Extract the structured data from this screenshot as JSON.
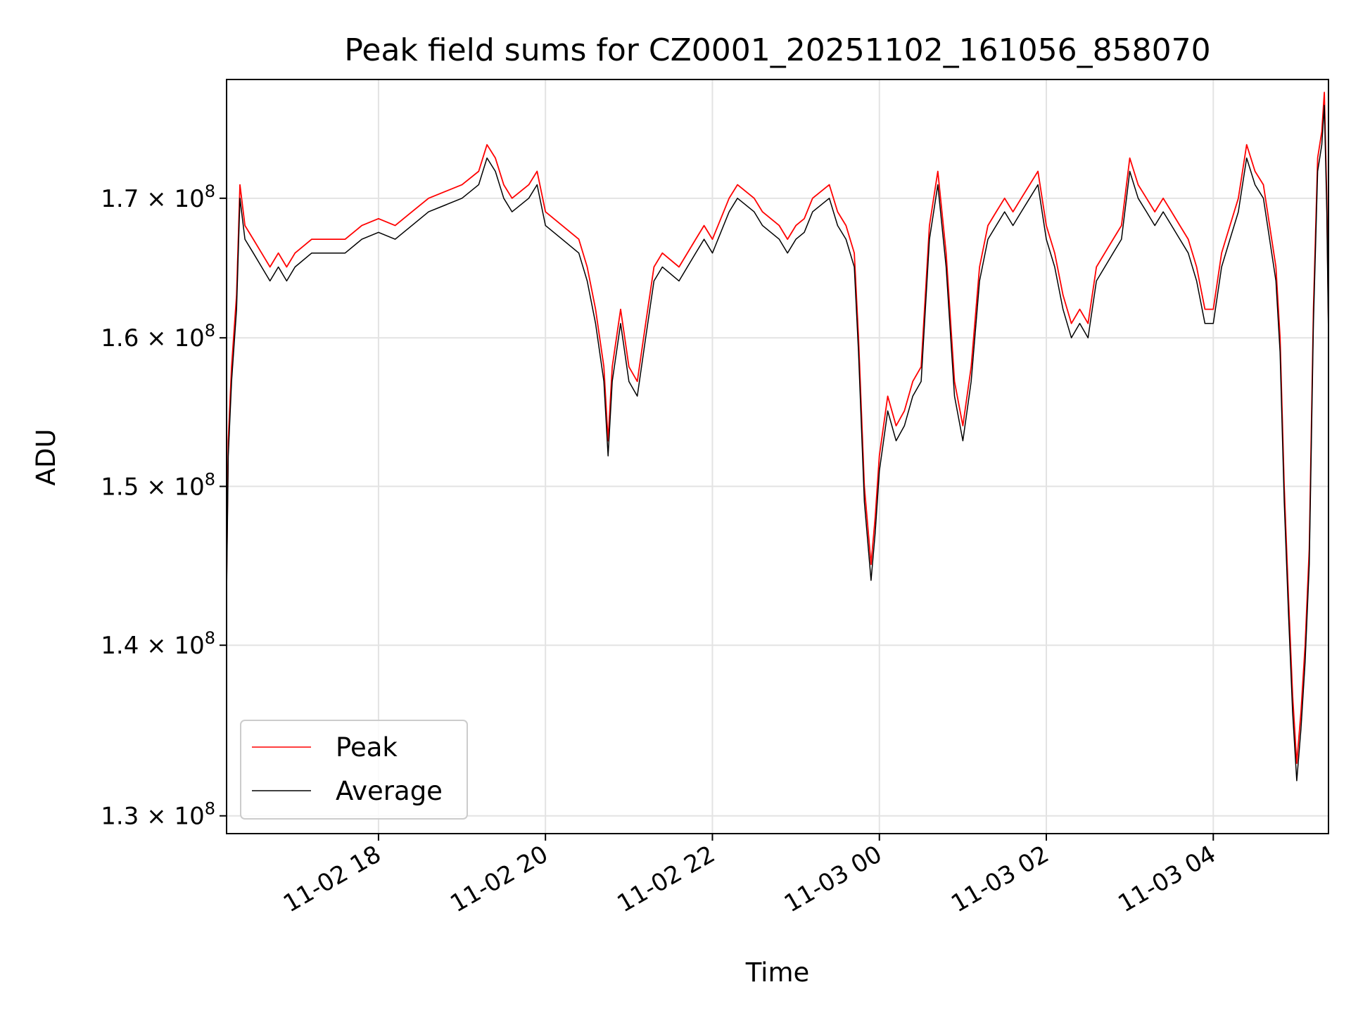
{
  "chart_data": {
    "type": "line",
    "title": "Peak field sums for CZ0001_20251102_161056_858070",
    "xlabel": "Time",
    "ylabel": "ADU",
    "yscale": "log",
    "ylim": [
      129000000,
      179000000
    ],
    "xlim_hours": [
      16.18,
      29.38
    ],
    "grid": true,
    "legend_location": "lower-left",
    "x_ticks": [
      {
        "label": "11-02 18",
        "hour": 18
      },
      {
        "label": "11-02 20",
        "hour": 20
      },
      {
        "label": "11-02 22",
        "hour": 22
      },
      {
        "label": "11-03 00",
        "hour": 24
      },
      {
        "label": "11-03 02",
        "hour": 26
      },
      {
        "label": "11-03 04",
        "hour": 28
      }
    ],
    "y_ticks": [
      {
        "mantissa": "1.3",
        "exponent": "8",
        "value": 130000000
      },
      {
        "mantissa": "1.4",
        "exponent": "8",
        "value": 140000000
      },
      {
        "mantissa": "1.5",
        "exponent": "8",
        "value": 150000000
      },
      {
        "mantissa": "1.6",
        "exponent": "8",
        "value": 160000000
      },
      {
        "mantissa": "1.7",
        "exponent": "8",
        "value": 170000000
      }
    ],
    "series": [
      {
        "name": "Peak",
        "color": "#ff0000",
        "points": [
          [
            16.18,
            144
          ],
          [
            16.2,
            153
          ],
          [
            16.24,
            158
          ],
          [
            16.3,
            163
          ],
          [
            16.34,
            171
          ],
          [
            16.4,
            168
          ],
          [
            16.5,
            167
          ],
          [
            16.6,
            166
          ],
          [
            16.7,
            165
          ],
          [
            16.8,
            166
          ],
          [
            16.9,
            165
          ],
          [
            17.0,
            166
          ],
          [
            17.2,
            167
          ],
          [
            17.4,
            167
          ],
          [
            17.6,
            167
          ],
          [
            17.8,
            168
          ],
          [
            18.0,
            168.5
          ],
          [
            18.2,
            168
          ],
          [
            18.4,
            169
          ],
          [
            18.6,
            170
          ],
          [
            18.8,
            170.5
          ],
          [
            19.0,
            171
          ],
          [
            19.2,
            172
          ],
          [
            19.3,
            174
          ],
          [
            19.4,
            173
          ],
          [
            19.5,
            171
          ],
          [
            19.6,
            170
          ],
          [
            19.8,
            171
          ],
          [
            19.9,
            172
          ],
          [
            20.0,
            169
          ],
          [
            20.2,
            168
          ],
          [
            20.4,
            167
          ],
          [
            20.5,
            165
          ],
          [
            20.6,
            162
          ],
          [
            20.7,
            158
          ],
          [
            20.75,
            153
          ],
          [
            20.8,
            158
          ],
          [
            20.9,
            162
          ],
          [
            21.0,
            158
          ],
          [
            21.1,
            157
          ],
          [
            21.2,
            161
          ],
          [
            21.3,
            165
          ],
          [
            21.4,
            166
          ],
          [
            21.6,
            165
          ],
          [
            21.8,
            167
          ],
          [
            21.9,
            168
          ],
          [
            22.0,
            167
          ],
          [
            22.2,
            170
          ],
          [
            22.3,
            171
          ],
          [
            22.5,
            170
          ],
          [
            22.6,
            169
          ],
          [
            22.8,
            168
          ],
          [
            22.9,
            167
          ],
          [
            23.0,
            168
          ],
          [
            23.1,
            168.5
          ],
          [
            23.2,
            170
          ],
          [
            23.4,
            171
          ],
          [
            23.5,
            169
          ],
          [
            23.6,
            168
          ],
          [
            23.7,
            166
          ],
          [
            23.75,
            160
          ],
          [
            23.82,
            150
          ],
          [
            23.9,
            145
          ],
          [
            23.95,
            148
          ],
          [
            24.0,
            152
          ],
          [
            24.1,
            156
          ],
          [
            24.2,
            154
          ],
          [
            24.3,
            155
          ],
          [
            24.4,
            157
          ],
          [
            24.5,
            158
          ],
          [
            24.6,
            168
          ],
          [
            24.7,
            172
          ],
          [
            24.8,
            166
          ],
          [
            24.9,
            157
          ],
          [
            25.0,
            154
          ],
          [
            25.1,
            158
          ],
          [
            25.2,
            165
          ],
          [
            25.3,
            168
          ],
          [
            25.4,
            169
          ],
          [
            25.5,
            170
          ],
          [
            25.6,
            169
          ],
          [
            25.7,
            170
          ],
          [
            25.8,
            171
          ],
          [
            25.9,
            172
          ],
          [
            26.0,
            168
          ],
          [
            26.1,
            166
          ],
          [
            26.2,
            163
          ],
          [
            26.3,
            161
          ],
          [
            26.4,
            162
          ],
          [
            26.5,
            161
          ],
          [
            26.6,
            165
          ],
          [
            26.7,
            166
          ],
          [
            26.8,
            167
          ],
          [
            26.9,
            168
          ],
          [
            27.0,
            173
          ],
          [
            27.1,
            171
          ],
          [
            27.2,
            170
          ],
          [
            27.3,
            169
          ],
          [
            27.4,
            170
          ],
          [
            27.5,
            169
          ],
          [
            27.6,
            168
          ],
          [
            27.7,
            167
          ],
          [
            27.8,
            165
          ],
          [
            27.9,
            162
          ],
          [
            28.0,
            162
          ],
          [
            28.1,
            166
          ],
          [
            28.2,
            168
          ],
          [
            28.3,
            170
          ],
          [
            28.4,
            174
          ],
          [
            28.5,
            172
          ],
          [
            28.6,
            171
          ],
          [
            28.7,
            167
          ],
          [
            28.75,
            165
          ],
          [
            28.8,
            160
          ],
          [
            28.85,
            150
          ],
          [
            28.9,
            143
          ],
          [
            28.95,
            137
          ],
          [
            29.0,
            133
          ],
          [
            29.05,
            136
          ],
          [
            29.1,
            140
          ],
          [
            29.15,
            146
          ],
          [
            29.2,
            162
          ],
          [
            29.25,
            173
          ],
          [
            29.3,
            175
          ],
          [
            29.33,
            178
          ],
          [
            29.36,
            170
          ],
          [
            29.38,
            161
          ]
        ]
      },
      {
        "name": "Average",
        "color": "#000000",
        "points": [
          [
            16.18,
            143
          ],
          [
            16.2,
            152
          ],
          [
            16.24,
            157
          ],
          [
            16.3,
            162
          ],
          [
            16.34,
            170
          ],
          [
            16.4,
            167
          ],
          [
            16.5,
            166
          ],
          [
            16.6,
            165
          ],
          [
            16.7,
            164
          ],
          [
            16.8,
            165
          ],
          [
            16.9,
            164
          ],
          [
            17.0,
            165
          ],
          [
            17.2,
            166
          ],
          [
            17.4,
            166
          ],
          [
            17.6,
            166
          ],
          [
            17.8,
            167
          ],
          [
            18.0,
            167.5
          ],
          [
            18.2,
            167
          ],
          [
            18.4,
            168
          ],
          [
            18.6,
            169
          ],
          [
            18.8,
            169.5
          ],
          [
            19.0,
            170
          ],
          [
            19.2,
            171
          ],
          [
            19.3,
            173
          ],
          [
            19.4,
            172
          ],
          [
            19.5,
            170
          ],
          [
            19.6,
            169
          ],
          [
            19.8,
            170
          ],
          [
            19.9,
            171
          ],
          [
            20.0,
            168
          ],
          [
            20.2,
            167
          ],
          [
            20.4,
            166
          ],
          [
            20.5,
            164
          ],
          [
            20.6,
            161
          ],
          [
            20.7,
            157
          ],
          [
            20.75,
            152
          ],
          [
            20.8,
            157
          ],
          [
            20.9,
            161
          ],
          [
            21.0,
            157
          ],
          [
            21.1,
            156
          ],
          [
            21.2,
            160
          ],
          [
            21.3,
            164
          ],
          [
            21.4,
            165
          ],
          [
            21.6,
            164
          ],
          [
            21.8,
            166
          ],
          [
            21.9,
            167
          ],
          [
            22.0,
            166
          ],
          [
            22.2,
            169
          ],
          [
            22.3,
            170
          ],
          [
            22.5,
            169
          ],
          [
            22.6,
            168
          ],
          [
            22.8,
            167
          ],
          [
            22.9,
            166
          ],
          [
            23.0,
            167
          ],
          [
            23.1,
            167.5
          ],
          [
            23.2,
            169
          ],
          [
            23.4,
            170
          ],
          [
            23.5,
            168
          ],
          [
            23.6,
            167
          ],
          [
            23.7,
            165
          ],
          [
            23.75,
            159
          ],
          [
            23.82,
            149
          ],
          [
            23.9,
            144
          ],
          [
            23.95,
            147
          ],
          [
            24.0,
            151
          ],
          [
            24.1,
            155
          ],
          [
            24.2,
            153
          ],
          [
            24.3,
            154
          ],
          [
            24.4,
            156
          ],
          [
            24.5,
            157
          ],
          [
            24.6,
            167
          ],
          [
            24.7,
            171
          ],
          [
            24.8,
            165
          ],
          [
            24.9,
            156
          ],
          [
            25.0,
            153
          ],
          [
            25.1,
            157
          ],
          [
            25.2,
            164
          ],
          [
            25.3,
            167
          ],
          [
            25.4,
            168
          ],
          [
            25.5,
            169
          ],
          [
            25.6,
            168
          ],
          [
            25.7,
            169
          ],
          [
            25.8,
            170
          ],
          [
            25.9,
            171
          ],
          [
            26.0,
            167
          ],
          [
            26.1,
            165
          ],
          [
            26.2,
            162
          ],
          [
            26.3,
            160
          ],
          [
            26.4,
            161
          ],
          [
            26.5,
            160
          ],
          [
            26.6,
            164
          ],
          [
            26.7,
            165
          ],
          [
            26.8,
            166
          ],
          [
            26.9,
            167
          ],
          [
            27.0,
            172
          ],
          [
            27.1,
            170
          ],
          [
            27.2,
            169
          ],
          [
            27.3,
            168
          ],
          [
            27.4,
            169
          ],
          [
            27.5,
            168
          ],
          [
            27.6,
            167
          ],
          [
            27.7,
            166
          ],
          [
            27.8,
            164
          ],
          [
            27.9,
            161
          ],
          [
            28.0,
            161
          ],
          [
            28.1,
            165
          ],
          [
            28.2,
            167
          ],
          [
            28.3,
            169
          ],
          [
            28.4,
            173
          ],
          [
            28.5,
            171
          ],
          [
            28.6,
            170
          ],
          [
            28.7,
            166
          ],
          [
            28.75,
            164
          ],
          [
            28.8,
            159
          ],
          [
            28.85,
            149
          ],
          [
            28.9,
            142
          ],
          [
            28.95,
            136
          ],
          [
            29.0,
            132
          ],
          [
            29.05,
            135
          ],
          [
            29.1,
            139
          ],
          [
            29.15,
            145
          ],
          [
            29.2,
            161
          ],
          [
            29.25,
            172
          ],
          [
            29.3,
            174
          ],
          [
            29.33,
            177
          ],
          [
            29.36,
            169
          ],
          [
            29.38,
            160
          ]
        ]
      }
    ]
  }
}
